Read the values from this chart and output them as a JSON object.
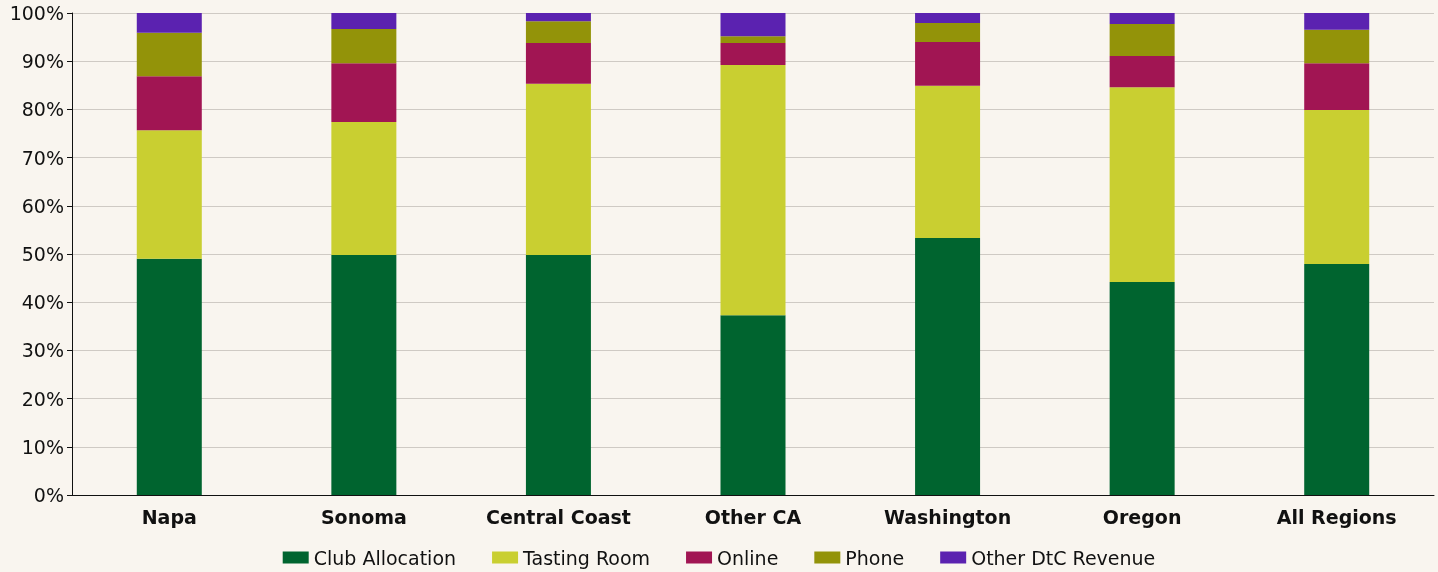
{
  "chart_data": {
    "type": "bar",
    "stacked": true,
    "categories": [
      "Napa",
      "Sonoma",
      "Central Coast",
      "Other CA",
      "Washington",
      "Oregon",
      "All Regions"
    ],
    "series": [
      {
        "name": "Club Allocation",
        "color": "#00642f",
        "values": [
          49.0,
          49.8,
          49.8,
          37.3,
          53.3,
          44.2,
          47.9
        ]
      },
      {
        "name": "Tasting Room",
        "color": "#c9cf31",
        "values": [
          26.7,
          27.6,
          35.5,
          51.9,
          31.6,
          40.4,
          32.0
        ]
      },
      {
        "name": "Online",
        "color": "#a11553",
        "values": [
          11.2,
          12.2,
          8.5,
          4.6,
          9.1,
          6.5,
          9.7
        ]
      },
      {
        "name": "Phone",
        "color": "#939309",
        "values": [
          9.0,
          7.1,
          4.5,
          1.4,
          3.9,
          6.6,
          6.9
        ]
      },
      {
        "name": "Other DtC Revenue",
        "color": "#5b22b0",
        "values": [
          4.1,
          3.3,
          1.7,
          4.8,
          2.1,
          2.3,
          3.5
        ]
      }
    ],
    "ylim": [
      0,
      100
    ],
    "yticks": [
      {
        "value": 0,
        "label": "0%"
      },
      {
        "value": 10,
        "label": "10%"
      },
      {
        "value": 20,
        "label": "20%"
      },
      {
        "value": 30,
        "label": "30%"
      },
      {
        "value": 40,
        "label": "40%"
      },
      {
        "value": 50,
        "label": "50%"
      },
      {
        "value": 60,
        "label": "60%"
      },
      {
        "value": 70,
        "label": "70%"
      },
      {
        "value": 80,
        "label": "80%"
      },
      {
        "value": 90,
        "label": "90%"
      },
      {
        "value": 100,
        "label": "100%"
      }
    ],
    "grid": "y",
    "legend": "bottom"
  }
}
